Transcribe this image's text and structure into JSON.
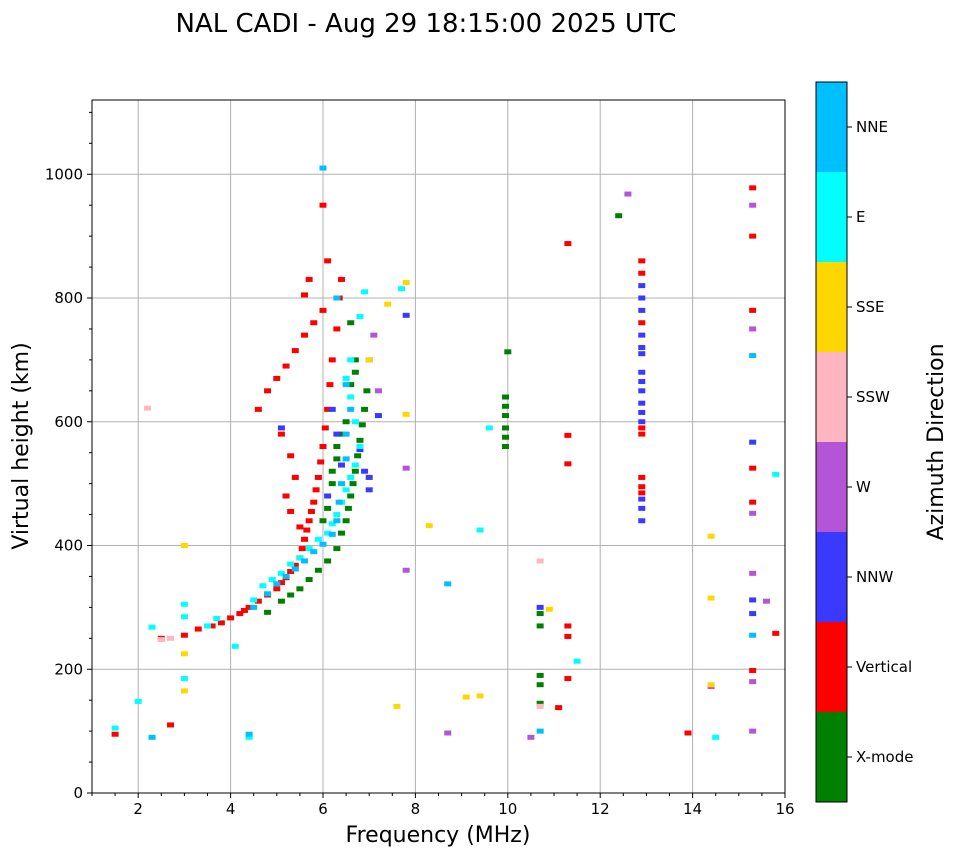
{
  "chart_data": {
    "type": "scatter",
    "title": "NAL CADI - Aug 29 18:15:00 2025 UTC",
    "xlabel": "Frequency (MHz)",
    "ylabel": "Virtual height (km)",
    "xlim": [
      1,
      16
    ],
    "ylim": [
      0,
      1120
    ],
    "xticks": [
      2,
      4,
      6,
      8,
      10,
      12,
      14,
      16
    ],
    "yticks": [
      0,
      200,
      400,
      600,
      800,
      1000
    ],
    "grid": true,
    "colorbar": {
      "label": "Azimuth Direction",
      "categories": [
        {
          "name": "X-mode",
          "color": "#008000"
        },
        {
          "name": "Vertical",
          "color": "#ff0000"
        },
        {
          "name": "NNW",
          "color": "#3a3aff"
        },
        {
          "name": "W",
          "color": "#b455d8"
        },
        {
          "name": "SSW",
          "color": "#ffb6c1"
        },
        {
          "name": "SSE",
          "color": "#ffd700"
        },
        {
          "name": "E",
          "color": "#00ffff"
        },
        {
          "name": "NNE",
          "color": "#00bfff"
        }
      ]
    },
    "series": [
      {
        "name": "Vertical",
        "points": [
          [
            1.5,
            95
          ],
          [
            2.5,
            250
          ],
          [
            2.7,
            110
          ],
          [
            3.0,
            255
          ],
          [
            3.3,
            265
          ],
          [
            3.6,
            270
          ],
          [
            3.8,
            275
          ],
          [
            4.0,
            283
          ],
          [
            4.2,
            290
          ],
          [
            4.3,
            295
          ],
          [
            4.4,
            300
          ],
          [
            4.6,
            310
          ],
          [
            4.8,
            320
          ],
          [
            5.0,
            330
          ],
          [
            5.1,
            340
          ],
          [
            5.2,
            348
          ],
          [
            5.3,
            358
          ],
          [
            5.4,
            368
          ],
          [
            5.5,
            380
          ],
          [
            5.55,
            395
          ],
          [
            5.6,
            410
          ],
          [
            5.65,
            425
          ],
          [
            5.7,
            440
          ],
          [
            5.75,
            455
          ],
          [
            5.8,
            470
          ],
          [
            5.85,
            490
          ],
          [
            5.9,
            510
          ],
          [
            5.95,
            535
          ],
          [
            6.0,
            560
          ],
          [
            6.05,
            590
          ],
          [
            6.1,
            620
          ],
          [
            6.15,
            660
          ],
          [
            6.2,
            700
          ],
          [
            6.3,
            750
          ],
          [
            6.35,
            800
          ],
          [
            6.4,
            830
          ],
          [
            6.0,
            780
          ],
          [
            5.8,
            760
          ],
          [
            5.6,
            740
          ],
          [
            5.4,
            715
          ],
          [
            5.2,
            690
          ],
          [
            5.0,
            670
          ],
          [
            4.8,
            650
          ],
          [
            4.6,
            620
          ],
          [
            5.1,
            580
          ],
          [
            5.3,
            545
          ],
          [
            5.4,
            510
          ],
          [
            5.2,
            480
          ],
          [
            5.3,
            455
          ],
          [
            5.5,
            430
          ],
          [
            5.6,
            805
          ],
          [
            5.7,
            830
          ],
          [
            6.0,
            950
          ],
          [
            6.1,
            860
          ],
          [
            11.3,
            888
          ],
          [
            11.3,
            578
          ],
          [
            11.3,
            532
          ],
          [
            11.3,
            270
          ],
          [
            11.3,
            253
          ],
          [
            11.3,
            185
          ],
          [
            11.1,
            138
          ],
          [
            13.9,
            97
          ],
          [
            12.9,
            860
          ],
          [
            12.9,
            840
          ],
          [
            12.9,
            760
          ],
          [
            12.9,
            590
          ],
          [
            12.9,
            580
          ],
          [
            12.9,
            510
          ],
          [
            12.9,
            495
          ],
          [
            12.9,
            485
          ],
          [
            15.3,
            978
          ],
          [
            15.3,
            900
          ],
          [
            15.3,
            780
          ],
          [
            15.3,
            525
          ],
          [
            15.3,
            470
          ],
          [
            15.3,
            198
          ],
          [
            15.8,
            258
          ]
        ]
      },
      {
        "name": "X-mode",
        "points": [
          [
            4.8,
            292
          ],
          [
            5.1,
            310
          ],
          [
            5.3,
            320
          ],
          [
            5.5,
            330
          ],
          [
            5.7,
            345
          ],
          [
            5.9,
            360
          ],
          [
            6.1,
            375
          ],
          [
            6.3,
            395
          ],
          [
            6.4,
            420
          ],
          [
            6.5,
            440
          ],
          [
            6.55,
            460
          ],
          [
            6.6,
            480
          ],
          [
            6.65,
            500
          ],
          [
            6.7,
            520
          ],
          [
            6.75,
            545
          ],
          [
            6.8,
            570
          ],
          [
            6.85,
            595
          ],
          [
            6.9,
            620
          ],
          [
            6.95,
            650
          ],
          [
            6.7,
            680
          ],
          [
            6.7,
            700
          ],
          [
            6.6,
            760
          ],
          [
            6.6,
            660
          ],
          [
            6.5,
            600
          ],
          [
            6.4,
            580
          ],
          [
            6.3,
            560
          ],
          [
            6.3,
            540
          ],
          [
            6.2,
            520
          ],
          [
            6.2,
            500
          ],
          [
            6.1,
            460
          ],
          [
            6.0,
            440
          ],
          [
            9.95,
            560
          ],
          [
            9.95,
            575
          ],
          [
            9.95,
            590
          ],
          [
            9.95,
            610
          ],
          [
            9.95,
            625
          ],
          [
            9.95,
            640
          ],
          [
            10.0,
            713
          ],
          [
            10.7,
            190
          ],
          [
            10.7,
            175
          ],
          [
            10.7,
            145
          ],
          [
            10.7,
            290
          ],
          [
            10.7,
            270
          ],
          [
            12.4,
            933
          ]
        ]
      },
      {
        "name": "NNW",
        "points": [
          [
            5.1,
            590
          ],
          [
            6.4,
            530
          ],
          [
            6.8,
            555
          ],
          [
            6.9,
            520
          ],
          [
            7.0,
            490
          ],
          [
            7.0,
            510
          ],
          [
            6.2,
            620
          ],
          [
            6.3,
            580
          ],
          [
            6.1,
            480
          ],
          [
            7.8,
            772
          ],
          [
            7.2,
            610
          ],
          [
            12.9,
            440
          ],
          [
            12.9,
            460
          ],
          [
            12.9,
            475
          ],
          [
            12.9,
            820
          ],
          [
            12.9,
            800
          ],
          [
            12.9,
            780
          ],
          [
            12.9,
            740
          ],
          [
            12.9,
            720
          ],
          [
            12.9,
            710
          ],
          [
            12.9,
            680
          ],
          [
            12.9,
            665
          ],
          [
            12.9,
            650
          ],
          [
            12.9,
            630
          ],
          [
            12.9,
            615
          ],
          [
            12.9,
            600
          ],
          [
            10.7,
            300
          ],
          [
            15.3,
            567
          ],
          [
            15.3,
            312
          ],
          [
            15.3,
            290
          ]
        ]
      },
      {
        "name": "W",
        "points": [
          [
            7.1,
            740
          ],
          [
            7.2,
            650
          ],
          [
            7.0,
            700
          ],
          [
            7.8,
            360
          ],
          [
            7.8,
            525
          ],
          [
            8.7,
            97
          ],
          [
            10.5,
            90
          ],
          [
            12.6,
            968
          ],
          [
            15.3,
            950
          ],
          [
            15.3,
            750
          ],
          [
            15.3,
            452
          ],
          [
            15.3,
            355
          ],
          [
            15.6,
            310
          ],
          [
            15.3,
            180
          ],
          [
            15.3,
            100
          ],
          [
            14.4,
            172
          ]
        ]
      },
      {
        "name": "SSW",
        "points": [
          [
            2.2,
            622
          ],
          [
            2.5,
            248
          ],
          [
            2.7,
            250
          ],
          [
            10.7,
            375
          ],
          [
            10.7,
            140
          ]
        ]
      },
      {
        "name": "SSE",
        "points": [
          [
            3.0,
            225
          ],
          [
            3.0,
            165
          ],
          [
            3.0,
            400
          ],
          [
            7.8,
            825
          ],
          [
            7.8,
            612
          ],
          [
            7.4,
            790
          ],
          [
            7.6,
            140
          ],
          [
            8.3,
            432
          ],
          [
            9.1,
            155
          ],
          [
            9.4,
            157
          ],
          [
            10.9,
            297
          ],
          [
            14.4,
            415
          ],
          [
            14.4,
            315
          ],
          [
            14.4,
            175
          ],
          [
            7.0,
            700
          ]
        ]
      },
      {
        "name": "E",
        "points": [
          [
            1.5,
            105
          ],
          [
            2.0,
            148
          ],
          [
            2.3,
            268
          ],
          [
            3.0,
            305
          ],
          [
            3.0,
            285
          ],
          [
            3.0,
            185
          ],
          [
            3.5,
            270
          ],
          [
            3.7,
            282
          ],
          [
            4.1,
            237
          ],
          [
            4.4,
            90
          ],
          [
            4.5,
            312
          ],
          [
            4.7,
            335
          ],
          [
            4.9,
            345
          ],
          [
            5.1,
            355
          ],
          [
            5.3,
            370
          ],
          [
            5.5,
            380
          ],
          [
            5.7,
            395
          ],
          [
            5.9,
            410
          ],
          [
            6.1,
            420
          ],
          [
            6.2,
            435
          ],
          [
            6.3,
            450
          ],
          [
            6.4,
            470
          ],
          [
            6.5,
            490
          ],
          [
            6.6,
            510
          ],
          [
            6.7,
            530
          ],
          [
            6.8,
            560
          ],
          [
            6.7,
            600
          ],
          [
            6.6,
            640
          ],
          [
            6.5,
            670
          ],
          [
            6.6,
            700
          ],
          [
            6.8,
            770
          ],
          [
            6.9,
            810
          ],
          [
            7.7,
            815
          ],
          [
            9.4,
            425
          ],
          [
            9.6,
            590
          ],
          [
            11.5,
            213
          ],
          [
            14.5,
            90
          ],
          [
            15.8,
            515
          ]
        ]
      },
      {
        "name": "NNE",
        "points": [
          [
            2.3,
            90
          ],
          [
            4.4,
            95
          ],
          [
            4.5,
            300
          ],
          [
            4.8,
            322
          ],
          [
            5.0,
            338
          ],
          [
            5.2,
            350
          ],
          [
            5.4,
            362
          ],
          [
            5.6,
            375
          ],
          [
            5.8,
            390
          ],
          [
            6.0,
            402
          ],
          [
            6.2,
            418
          ],
          [
            6.3,
            440
          ],
          [
            6.35,
            470
          ],
          [
            6.4,
            500
          ],
          [
            6.5,
            540
          ],
          [
            6.5,
            580
          ],
          [
            6.6,
            620
          ],
          [
            6.5,
            660
          ],
          [
            6.0,
            1010
          ],
          [
            6.3,
            800
          ],
          [
            8.7,
            338
          ],
          [
            10.7,
            100
          ],
          [
            15.3,
            707
          ],
          [
            15.3,
            255
          ]
        ]
      }
    ]
  }
}
